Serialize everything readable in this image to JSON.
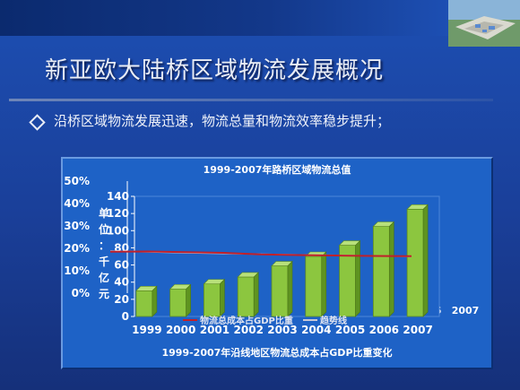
{
  "slide": {
    "title": "新亚欧大陆桥区域物流发展概况",
    "bullet": "沿桥区域物流发展迅速，物流总量和物流效率稳步提升；"
  },
  "colors": {
    "bar": "#8cc63f",
    "cost_line": "#c0202a",
    "trend_line": "#c8c8d8",
    "text": "#ffffff"
  },
  "chart_data": [
    {
      "type": "bar",
      "title": "1999-2007年路桥区域物流总值",
      "ylabel": "单位：千亿元",
      "categories": [
        "1999",
        "2000",
        "2001",
        "2002",
        "2003",
        "2004",
        "2005",
        "2006",
        "2007"
      ],
      "values": [
        30,
        32,
        38,
        46,
        59,
        70,
        83,
        105,
        125
      ],
      "ylim": [
        0,
        140
      ],
      "yticks": [
        "0",
        "20",
        "40",
        "60",
        "80",
        "100",
        "120",
        "140"
      ],
      "grid": false
    },
    {
      "type": "line",
      "title": "1999-2007年沿线地区物流总成本占GDP比重变化",
      "x": [
        "1999",
        "2000",
        "2001",
        "2002",
        "2003",
        "2004",
        "2005",
        "2006",
        "2007"
      ],
      "series": [
        {
          "name": "物流总成本占GDP比重",
          "values": [
            18.5,
            18.6,
            18.3,
            18.0,
            17.3,
            17.0,
            16.8,
            16.6,
            16.5
          ]
        },
        {
          "name": "趋势线",
          "values": [
            18.8,
            18.4,
            18.0,
            17.7,
            17.4,
            17.1,
            16.9,
            16.6,
            16.4
          ]
        }
      ],
      "ylim": [
        0,
        50
      ],
      "yticks": [
        "0%",
        "10%",
        "20%",
        "30%",
        "40%",
        "50%"
      ],
      "legend_position": "bottom"
    }
  ]
}
